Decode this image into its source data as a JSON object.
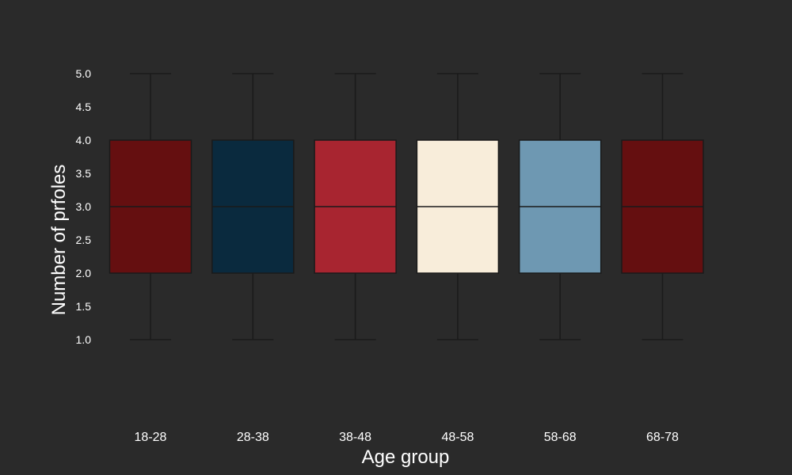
{
  "chart_data": {
    "type": "box",
    "xlabel": "Age group",
    "ylabel": "Number of prfoles",
    "ylim": [
      0.9,
      5.2
    ],
    "yticks": [
      1.0,
      1.5,
      2.0,
      2.5,
      3.0,
      3.5,
      4.0,
      4.5,
      5.0
    ],
    "ytick_labels": [
      "1.0",
      "1.5",
      "2.0",
      "2.5",
      "3.0",
      "3.5",
      "4.0",
      "4.5",
      "5.0"
    ],
    "grid": false,
    "legend": "none",
    "categories": [
      "18-28",
      "28-38",
      "38-48",
      "48-58",
      "58-68",
      "68-78"
    ],
    "boxes": [
      {
        "category": "18-28",
        "min": 1.0,
        "q1": 2.0,
        "median": 3.0,
        "q3": 4.0,
        "max": 5.0,
        "color": "#650f10"
      },
      {
        "category": "28-38",
        "min": 1.0,
        "q1": 2.0,
        "median": 3.0,
        "q3": 4.0,
        "max": 5.0,
        "color": "#0a2a3e"
      },
      {
        "category": "38-48",
        "min": 1.0,
        "q1": 2.0,
        "median": 3.0,
        "q3": 4.0,
        "max": 5.0,
        "color": "#a82530"
      },
      {
        "category": "48-58",
        "min": 1.0,
        "q1": 2.0,
        "median": 3.0,
        "q3": 4.0,
        "max": 5.0,
        "color": "#f8edda"
      },
      {
        "category": "58-68",
        "min": 1.0,
        "q1": 2.0,
        "median": 3.0,
        "q3": 4.0,
        "max": 5.0,
        "color": "#6e98b2"
      },
      {
        "category": "68-78",
        "min": 1.0,
        "q1": 2.0,
        "median": 3.0,
        "q3": 4.0,
        "max": 5.0,
        "color": "#650f10"
      }
    ]
  },
  "colors": {
    "background": "#2a2a2a",
    "line": "#1a1a1a",
    "text": "#ffffff"
  }
}
